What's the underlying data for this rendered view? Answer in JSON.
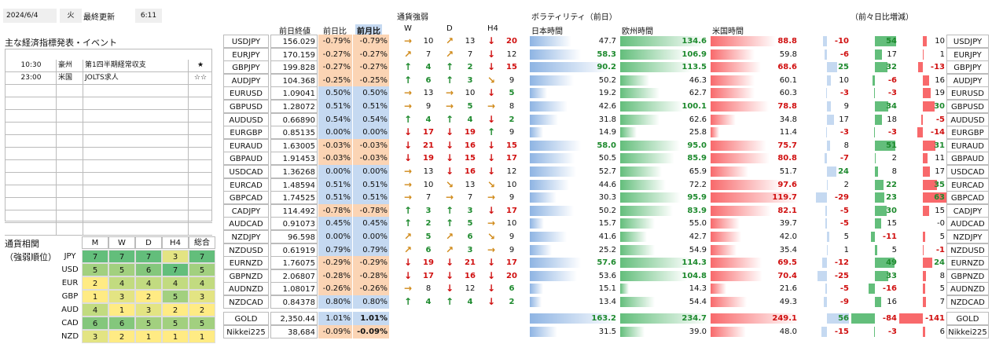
{
  "header": {
    "date": "2024/6/4",
    "weekday": "火",
    "updated_label": "最終更新",
    "time": "6:11"
  },
  "events": {
    "title": "主な経済指標発表・イベント",
    "rows": [
      {
        "time": "10:30",
        "country": "豪州",
        "name": "第1四半期経常収支",
        "stars": "★"
      },
      {
        "time": "23:00",
        "country": "米国",
        "name": "JOLTS求人",
        "stars": "☆☆"
      },
      {
        "time": "",
        "country": "",
        "name": "",
        "stars": ""
      },
      {
        "time": "",
        "country": "",
        "name": "",
        "stars": ""
      },
      {
        "time": "",
        "country": "",
        "name": "",
        "stars": ""
      },
      {
        "time": "",
        "country": "",
        "name": "",
        "stars": ""
      },
      {
        "time": "",
        "country": "",
        "name": "",
        "stars": ""
      },
      {
        "time": "",
        "country": "",
        "name": "",
        "stars": ""
      },
      {
        "time": "",
        "country": "",
        "name": "",
        "stars": ""
      },
      {
        "time": "",
        "country": "",
        "name": "",
        "stars": ""
      },
      {
        "time": "",
        "country": "",
        "name": "",
        "stars": ""
      },
      {
        "time": "",
        "country": "",
        "name": "",
        "stars": ""
      },
      {
        "time": "",
        "country": "",
        "name": "",
        "stars": ""
      },
      {
        "time": "",
        "country": "",
        "name": "",
        "stars": ""
      }
    ]
  },
  "correlation": {
    "title1": "通貨相関",
    "title2": "（強弱順位）",
    "headers": [
      "M",
      "W",
      "D",
      "H4",
      "総合"
    ],
    "rows": [
      [
        "JPY",
        "7",
        "7",
        "7",
        "3",
        "7"
      ],
      [
        "USD",
        "5",
        "5",
        "6",
        "7",
        "5"
      ],
      [
        "EUR",
        "2",
        "4",
        "4",
        "4",
        "4"
      ],
      [
        "GBP",
        "1",
        "3",
        "2",
        "5",
        "3"
      ],
      [
        "AUD",
        "4",
        "1",
        "3",
        "2",
        "2"
      ],
      [
        "CAD",
        "6",
        "6",
        "5",
        "5",
        "5"
      ],
      [
        "NZD",
        "3",
        "2",
        "1",
        "1",
        "1"
      ]
    ]
  },
  "headers": {
    "close": "前日終値",
    "dayChg": "前日比",
    "monChg": "前月比",
    "strength": "通貨強弱",
    "w": "W",
    "d": "D",
    "h4": "H4",
    "vol": "ボラティリティ（前日）",
    "jp": "日本時間",
    "eu": "欧州時間",
    "us": "米国時間",
    "cmp": "（前々日比増減）"
  },
  "pairs": [
    {
      "name": "USDJPY",
      "close": "156.029",
      "day": "-0.79%",
      "mon": "-0.79%",
      "w": [
        "→",
        "10"
      ],
      "d": [
        "↗",
        "13"
      ],
      "h4": [
        "↓",
        "20"
      ],
      "vjp": "47.7",
      "veu": "134.6",
      "vus": "88.8",
      "cjp": "-10",
      "ceu": "54",
      "cus": "10"
    },
    {
      "name": "EURJPY",
      "close": "170.159",
      "day": "-0.27%",
      "mon": "-0.27%",
      "w": [
        "↗",
        "7"
      ],
      "d": [
        "↗",
        "7"
      ],
      "h4": [
        "↓",
        "12"
      ],
      "vjp": "58.3",
      "veu": "106.9",
      "vus": "59.8",
      "cjp": "-6",
      "ceu": "17",
      "cus": "1"
    },
    {
      "name": "GBPJPY",
      "close": "199.828",
      "day": "-0.27%",
      "mon": "-0.27%",
      "w": [
        "↑",
        "4"
      ],
      "d": [
        "↑",
        "2"
      ],
      "h4": [
        "↓",
        "15"
      ],
      "vjp": "90.2",
      "veu": "113.5",
      "vus": "68.6",
      "cjp": "25",
      "ceu": "32",
      "cus": "-13"
    },
    {
      "name": "AUDJPY",
      "close": "104.368",
      "day": "-0.25%",
      "mon": "-0.25%",
      "w": [
        "↑",
        "6"
      ],
      "d": [
        "↑",
        "3"
      ],
      "h4": [
        "↘",
        "9"
      ],
      "vjp": "50.2",
      "veu": "46.3",
      "vus": "60.1",
      "cjp": "10",
      "ceu": "-6",
      "cus": "16"
    },
    {
      "name": "EURUSD",
      "close": "1.09041",
      "day": "0.50%",
      "mon": "0.50%",
      "w": [
        "→",
        "13"
      ],
      "d": [
        "→",
        "10"
      ],
      "h4": [
        "↓",
        "5"
      ],
      "vjp": "19.2",
      "veu": "62.7",
      "vus": "60.3",
      "cjp": "-3",
      "ceu": "-3",
      "cus": "19"
    },
    {
      "name": "GBPUSD",
      "close": "1.28072",
      "day": "0.51%",
      "mon": "0.51%",
      "w": [
        "→",
        "9"
      ],
      "d": [
        "→",
        "5"
      ],
      "h4": [
        "→",
        "8"
      ],
      "vjp": "42.6",
      "veu": "100.1",
      "vus": "78.8",
      "cjp": "9",
      "ceu": "34",
      "cus": "30"
    },
    {
      "name": "AUDUSD",
      "close": "0.66890",
      "day": "0.54%",
      "mon": "0.54%",
      "w": [
        "↑",
        "4"
      ],
      "d": [
        "↑",
        "4"
      ],
      "h4": [
        "↓",
        "2"
      ],
      "vjp": "31.8",
      "veu": "62.6",
      "vus": "34.8",
      "cjp": "17",
      "ceu": "18",
      "cus": "-5"
    },
    {
      "name": "EURGBP",
      "close": "0.85135",
      "day": "0.00%",
      "mon": "0.00%",
      "w": [
        "↓",
        "17"
      ],
      "d": [
        "↓",
        "19"
      ],
      "h4": [
        "↑",
        "9"
      ],
      "vjp": "14.9",
      "veu": "25.8",
      "vus": "11.4",
      "cjp": "-3",
      "ceu": "-3",
      "cus": "-14"
    },
    {
      "name": "EURAUD",
      "close": "1.63005",
      "day": "-0.03%",
      "mon": "-0.03%",
      "w": [
        "↓",
        "21"
      ],
      "d": [
        "↓",
        "16"
      ],
      "h4": [
        "↓",
        "15"
      ],
      "vjp": "58.0",
      "veu": "95.0",
      "vus": "75.7",
      "cjp": "8",
      "ceu": "51",
      "cus": "31"
    },
    {
      "name": "GBPAUD",
      "close": "1.91453",
      "day": "-0.03%",
      "mon": "-0.03%",
      "w": [
        "↓",
        "19"
      ],
      "d": [
        "↓",
        "15"
      ],
      "h4": [
        "↓",
        "17"
      ],
      "vjp": "50.5",
      "veu": "85.9",
      "vus": "80.8",
      "cjp": "-7",
      "ceu": "2",
      "cus": "11"
    },
    {
      "name": "USDCAD",
      "close": "1.36268",
      "day": "0.00%",
      "mon": "0.00%",
      "w": [
        "→",
        "13"
      ],
      "d": [
        "↓",
        "16"
      ],
      "h4": [
        "↓",
        "12"
      ],
      "vjp": "52.7",
      "veu": "65.9",
      "vus": "51.7",
      "cjp": "24",
      "ceu": "8",
      "cus": "17"
    },
    {
      "name": "EURCAD",
      "close": "1.48594",
      "day": "0.51%",
      "mon": "0.51%",
      "w": [
        "→",
        "10"
      ],
      "d": [
        "↘",
        "13"
      ],
      "h4": [
        "↘",
        "10"
      ],
      "vjp": "44.6",
      "veu": "72.2",
      "vus": "97.6",
      "cjp": "2",
      "ceu": "22",
      "cus": "35"
    },
    {
      "name": "GBPCAD",
      "close": "1.74525",
      "day": "0.51%",
      "mon": "0.51%",
      "w": [
        "→",
        "7"
      ],
      "d": [
        "→",
        "7"
      ],
      "h4": [
        "→",
        "9"
      ],
      "vjp": "30.3",
      "veu": "95.9",
      "vus": "119.7",
      "cjp": "-29",
      "ceu": "23",
      "cus": "63"
    },
    {
      "name": "CADJPY",
      "close": "114.492",
      "day": "-0.78%",
      "mon": "-0.78%",
      "w": [
        "↑",
        "3"
      ],
      "d": [
        "↑",
        "3"
      ],
      "h4": [
        "↓",
        "17"
      ],
      "vjp": "50.2",
      "veu": "83.9",
      "vus": "82.1",
      "cjp": "-5",
      "ceu": "30",
      "cus": "15"
    },
    {
      "name": "AUDCAD",
      "close": "0.91073",
      "day": "0.45%",
      "mon": "0.45%",
      "w": [
        "↑",
        "2"
      ],
      "d": [
        "↑",
        "5"
      ],
      "h4": [
        "→",
        "10"
      ],
      "vjp": "15.7",
      "veu": "55.0",
      "vus": "39.7",
      "cjp": "-5",
      "ceu": "15",
      "cus": "-0"
    },
    {
      "name": "NZDJPY",
      "close": "96.598",
      "day": "0.00%",
      "mon": "0.00%",
      "w": [
        "↗",
        "5"
      ],
      "d": [
        "↗",
        "6"
      ],
      "h4": [
        "↘",
        "9"
      ],
      "vjp": "41.6",
      "veu": "42.7",
      "vus": "42.0",
      "cjp": "5",
      "ceu": "-11",
      "cus": "5"
    },
    {
      "name": "NZDUSD",
      "close": "0.61919",
      "day": "0.79%",
      "mon": "0.79%",
      "w": [
        "↗",
        "6"
      ],
      "d": [
        "↗",
        "3"
      ],
      "h4": [
        "→",
        "9"
      ],
      "vjp": "25.2",
      "veu": "54.9",
      "vus": "35.4",
      "cjp": "1",
      "ceu": "5",
      "cus": "-1"
    },
    {
      "name": "EURNZD",
      "close": "1.76075",
      "day": "-0.29%",
      "mon": "-0.29%",
      "w": [
        "↓",
        "19"
      ],
      "d": [
        "↓",
        "21"
      ],
      "h4": [
        "↓",
        "17"
      ],
      "vjp": "57.6",
      "veu": "114.3",
      "vus": "69.5",
      "cjp": "-12",
      "ceu": "49",
      "cus": "24"
    },
    {
      "name": "GBPNZD",
      "close": "2.06807",
      "day": "-0.28%",
      "mon": "-0.28%",
      "w": [
        "↓",
        "17"
      ],
      "d": [
        "↓",
        "16"
      ],
      "h4": [
        "↓",
        "20"
      ],
      "vjp": "53.6",
      "veu": "104.8",
      "vus": "70.4",
      "cjp": "-25",
      "ceu": "33",
      "cus": "8"
    },
    {
      "name": "AUDNZD",
      "close": "1.08017",
      "day": "-0.26%",
      "mon": "-0.26%",
      "w": [
        "→",
        "8"
      ],
      "d": [
        "↓",
        "12"
      ],
      "h4": [
        "↓",
        "6"
      ],
      "vjp": "15.1",
      "veu": "14.3",
      "vus": "21.6",
      "cjp": "-5",
      "ceu": "-16",
      "cus": "5"
    },
    {
      "name": "NZDCAD",
      "close": "0.84378",
      "day": "0.80%",
      "mon": "0.80%",
      "w": [
        "↑",
        "4"
      ],
      "d": [
        "↑",
        "4"
      ],
      "h4": [
        "↓",
        "2"
      ],
      "vjp": "13.4",
      "veu": "54.4",
      "vus": "49.3",
      "cjp": "-9",
      "ceu": "16",
      "cus": "7"
    }
  ],
  "extras": [
    {
      "name": "GOLD",
      "close": "2,350.44",
      "day": "1.01%",
      "mon": "1.01%",
      "vjp": "163.2",
      "veu": "234.7",
      "vus": "249.1",
      "cjp": "56",
      "ceu": "-84",
      "cus": "-141"
    },
    {
      "name": "Nikkei225",
      "close": "38,684",
      "day": "-0.09%",
      "mon": "-0.09%",
      "vjp": "31.5",
      "veu": "39.0",
      "vus": "48.0",
      "cjp": "-15",
      "ceu": "-3",
      "cus": "6"
    }
  ],
  "colors": {
    "blue": "#c5d9f1",
    "orange": "#fbd4b4",
    "green": "#63be7b",
    "red": "#f8696b"
  }
}
